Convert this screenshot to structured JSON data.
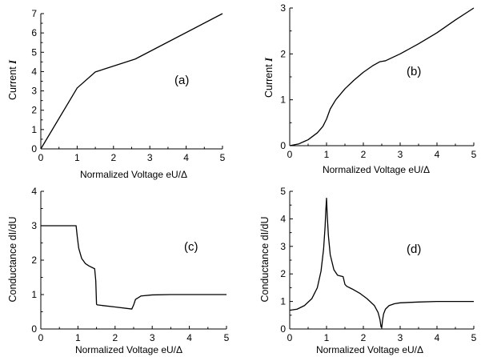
{
  "chart_data": [
    {
      "type": "line",
      "panel_label": "(a)",
      "xlabel": "Normalized Voltage eU/Δ",
      "ylabel": "Current",
      "ylabel_symbol": "I",
      "xlim": [
        0,
        5
      ],
      "ylim": [
        0,
        7
      ],
      "xticks": [
        0,
        1,
        2,
        3,
        4,
        5
      ],
      "yticks": [
        0,
        1,
        2,
        3,
        4,
        5,
        6,
        7
      ],
      "series": [
        {
          "x": [
            0,
            1.0,
            1.5,
            2.6,
            5.0
          ],
          "y": [
            0,
            3.15,
            3.98,
            4.65,
            7.0
          ]
        }
      ]
    },
    {
      "type": "line",
      "panel_label": "(b)",
      "xlabel": "Normalized Voltage eU/Δ",
      "ylabel": "Current",
      "ylabel_symbol": "I",
      "xlim": [
        0,
        5
      ],
      "ylim": [
        0,
        3
      ],
      "xticks": [
        0,
        1,
        2,
        3,
        4,
        5
      ],
      "yticks": [
        0,
        1,
        2,
        3
      ],
      "series": [
        {
          "x": [
            0,
            0.25,
            0.5,
            0.75,
            0.9,
            1.0,
            1.1,
            1.25,
            1.5,
            1.75,
            2.0,
            2.25,
            2.45,
            2.6,
            3.0,
            3.5,
            4.0,
            4.5,
            5.0
          ],
          "y": [
            0,
            0.04,
            0.13,
            0.28,
            0.42,
            0.58,
            0.8,
            1.0,
            1.24,
            1.43,
            1.6,
            1.74,
            1.83,
            1.85,
            2.0,
            2.22,
            2.46,
            2.74,
            3.0
          ]
        }
      ]
    },
    {
      "type": "line",
      "panel_label": "(c)",
      "xlabel": "Normalized Voltage eU/Δ",
      "ylabel": "Conductance dI/dU",
      "xlim": [
        0,
        5
      ],
      "ylim": [
        0,
        4
      ],
      "xticks": [
        0,
        1,
        2,
        3,
        4,
        5
      ],
      "yticks": [
        0,
        1,
        2,
        3,
        4
      ],
      "series": [
        {
          "x": [
            0,
            0.95,
            0.98,
            1.02,
            1.06,
            1.1,
            1.2,
            1.3,
            1.45,
            1.48,
            1.5,
            1.52,
            2.0,
            2.45,
            2.5,
            2.55,
            2.7,
            3.0,
            3.5,
            4.0,
            4.5,
            5.0
          ],
          "y": [
            3.0,
            3.0,
            2.7,
            2.35,
            2.2,
            2.05,
            1.9,
            1.83,
            1.75,
            1.4,
            0.72,
            0.7,
            0.64,
            0.58,
            0.7,
            0.86,
            0.96,
            0.99,
            1.0,
            1.0,
            1.0,
            1.0
          ]
        }
      ]
    },
    {
      "type": "line",
      "panel_label": "(d)",
      "xlabel": "Normalized Voltage eU/Δ",
      "ylabel": "Conductance dI/dU",
      "xlim": [
        0,
        5
      ],
      "ylim": [
        0,
        5
      ],
      "xticks": [
        0,
        1,
        2,
        3,
        4,
        5
      ],
      "yticks": [
        0,
        1,
        2,
        3,
        4,
        5
      ],
      "series": [
        {
          "x": [
            0,
            0.2,
            0.4,
            0.6,
            0.75,
            0.85,
            0.92,
            0.96,
            0.98,
            1.0,
            1.02,
            1.05,
            1.1,
            1.2,
            1.3,
            1.45,
            1.5,
            1.55,
            1.7,
            1.9,
            2.1,
            2.3,
            2.4,
            2.45,
            2.48,
            2.5,
            2.52,
            2.55,
            2.6,
            2.7,
            2.85,
            3.0,
            3.5,
            4.0,
            4.5,
            5.0
          ],
          "y": [
            0.68,
            0.72,
            0.85,
            1.1,
            1.5,
            2.1,
            2.9,
            3.7,
            4.3,
            4.75,
            4.1,
            3.4,
            2.7,
            2.15,
            1.95,
            1.9,
            1.62,
            1.55,
            1.45,
            1.3,
            1.1,
            0.85,
            0.6,
            0.35,
            0.08,
            0.05,
            0.3,
            0.55,
            0.72,
            0.85,
            0.92,
            0.95,
            0.98,
            1.0,
            1.0,
            1.0
          ]
        }
      ]
    }
  ]
}
